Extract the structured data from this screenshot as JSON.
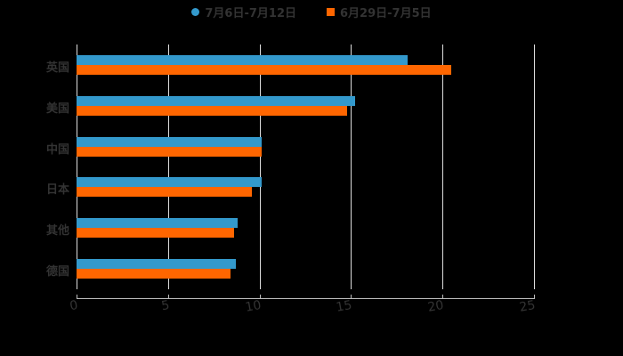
{
  "chart_data": {
    "type": "bar",
    "orientation": "horizontal",
    "title": "",
    "xlabel": "",
    "ylabel": "",
    "categories": [
      "英国",
      "美国",
      "中国",
      "日本",
      "其他",
      "德国"
    ],
    "series": [
      {
        "name": "7月6日-7月12日",
        "color": "#3399cc",
        "values": [
          18.1,
          15.2,
          10.1,
          10.1,
          8.8,
          8.7
        ]
      },
      {
        "name": "6月29日-7月5日",
        "color": "#ff6600",
        "values": [
          20.5,
          14.8,
          10.1,
          9.6,
          8.6,
          8.4
        ]
      }
    ],
    "xlim": [
      0,
      25
    ],
    "xticks": [
      "0",
      "5",
      "10",
      "15",
      "20",
      "25"
    ],
    "grid": true,
    "legend_position": "top"
  },
  "legend": {
    "series1": "7月6日-7月12日",
    "series2": "6月29日-7月5日"
  },
  "colors": {
    "series1": "#3399cc",
    "series2": "#ff6600"
  }
}
